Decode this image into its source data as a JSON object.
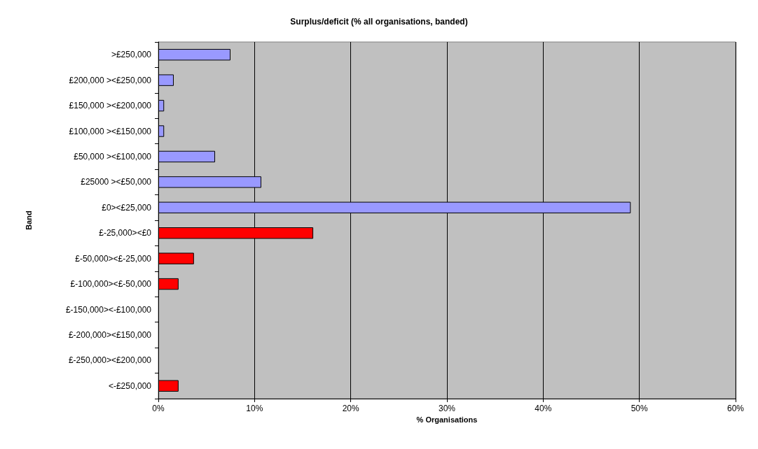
{
  "chart_data": {
    "type": "bar",
    "orientation": "horizontal",
    "title": "Surplus/deficit (% all organisations, banded)",
    "xlabel": "% Organisations",
    "ylabel": "Band",
    "categories": [
      ">£250,000",
      "£200,000 ><£250,000",
      "£150,000 ><£200,000",
      "£100,000 ><£150,000",
      "£50,000 ><£100,000",
      "£25000 ><£50,000",
      "£0><£25,000",
      "£-25,000><£0",
      "£-50,000><£-25,000",
      "£-100,000><£-50,000",
      "£-150,000><-£100,000",
      "£-200,000><£150,000",
      "£-250,000><£200,000",
      "<-£250,000"
    ],
    "values": [
      7.5,
      1.6,
      0.6,
      0.6,
      5.9,
      10.7,
      49.1,
      16.1,
      3.7,
      2.1,
      null,
      null,
      null,
      2.1
    ],
    "colors": [
      "#9999ff",
      "#9999ff",
      "#9999ff",
      "#9999ff",
      "#9999ff",
      "#9999ff",
      "#9999ff",
      "#ff0000",
      "#ff0000",
      "#ff0000",
      null,
      null,
      null,
      "#ff0000"
    ],
    "xlim": [
      0,
      60
    ],
    "xticks": [
      {
        "value": 0,
        "label": "0%"
      },
      {
        "value": 10,
        "label": "10%"
      },
      {
        "value": 20,
        "label": "20%"
      },
      {
        "value": 30,
        "label": "30%"
      },
      {
        "value": 40,
        "label": "40%"
      },
      {
        "value": 50,
        "label": "50%"
      },
      {
        "value": 60,
        "label": "60%"
      }
    ],
    "grid": "x"
  }
}
